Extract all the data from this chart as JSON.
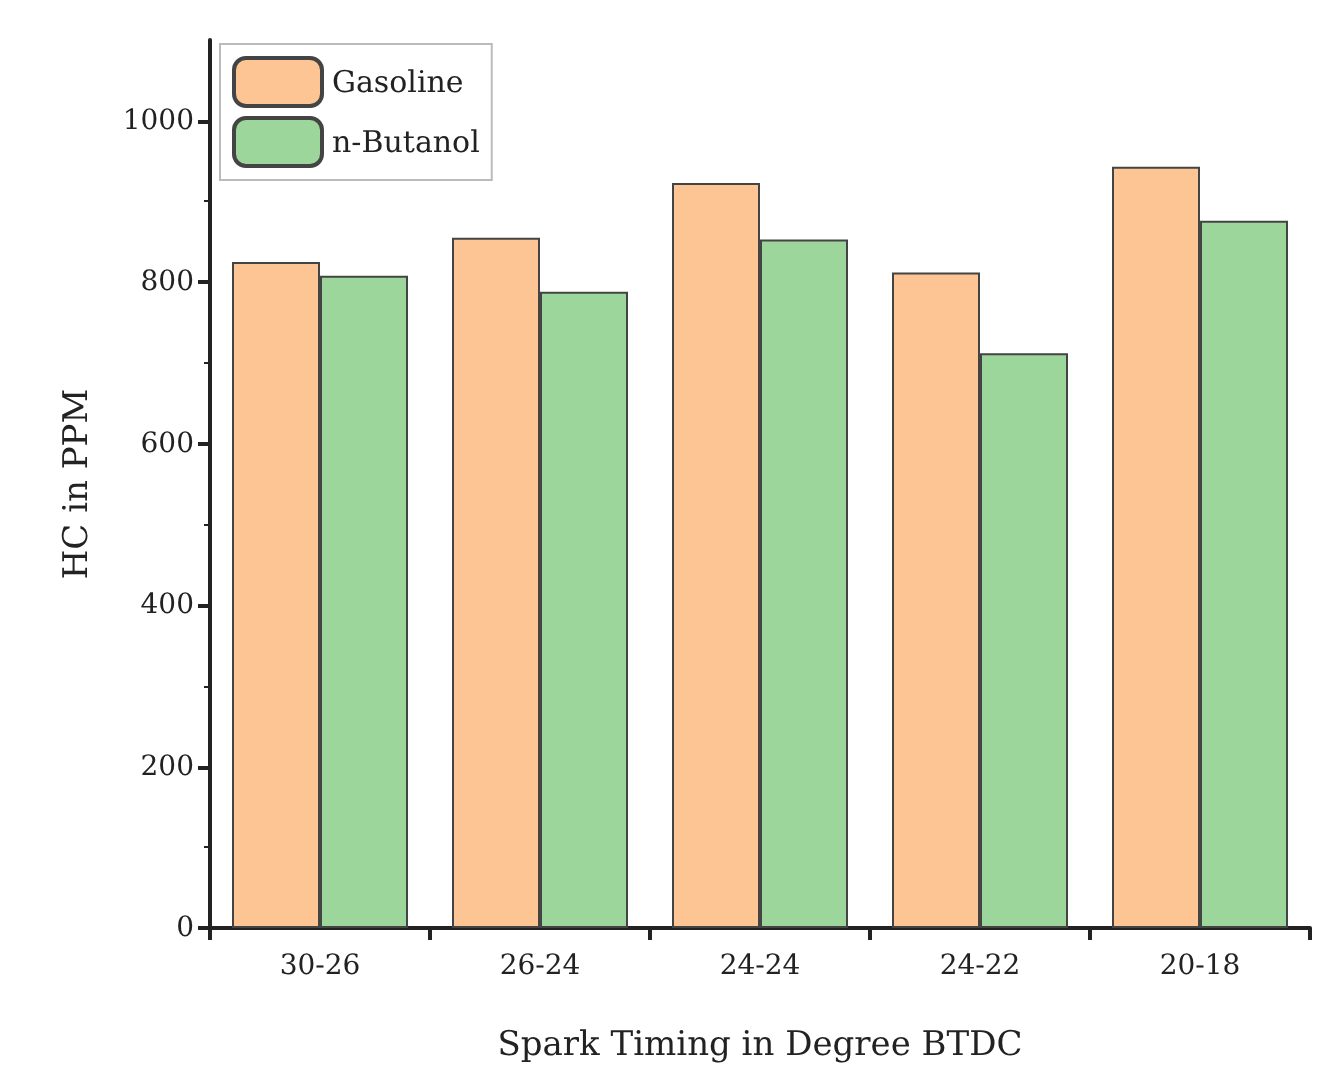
{
  "chart_data": {
    "type": "bar",
    "xlabel": "Spark Timing in Degree BTDC",
    "ylabel": "HC in PPM",
    "categories": [
      "30-26",
      "26-24",
      "24-24",
      "24-22",
      "20-18"
    ],
    "series": [
      {
        "name": "Gasoline",
        "color": "#fdc593",
        "values": [
          825,
          855,
          923,
          812,
          943
        ]
      },
      {
        "name": "n-Butanol",
        "color": "#9cd69b",
        "values": [
          808,
          788,
          853,
          712,
          876
        ]
      }
    ],
    "ylim": [
      0,
      1100
    ],
    "yticks": [
      0,
      200,
      400,
      600,
      800,
      1000
    ],
    "grid": false,
    "legend": "top left"
  }
}
